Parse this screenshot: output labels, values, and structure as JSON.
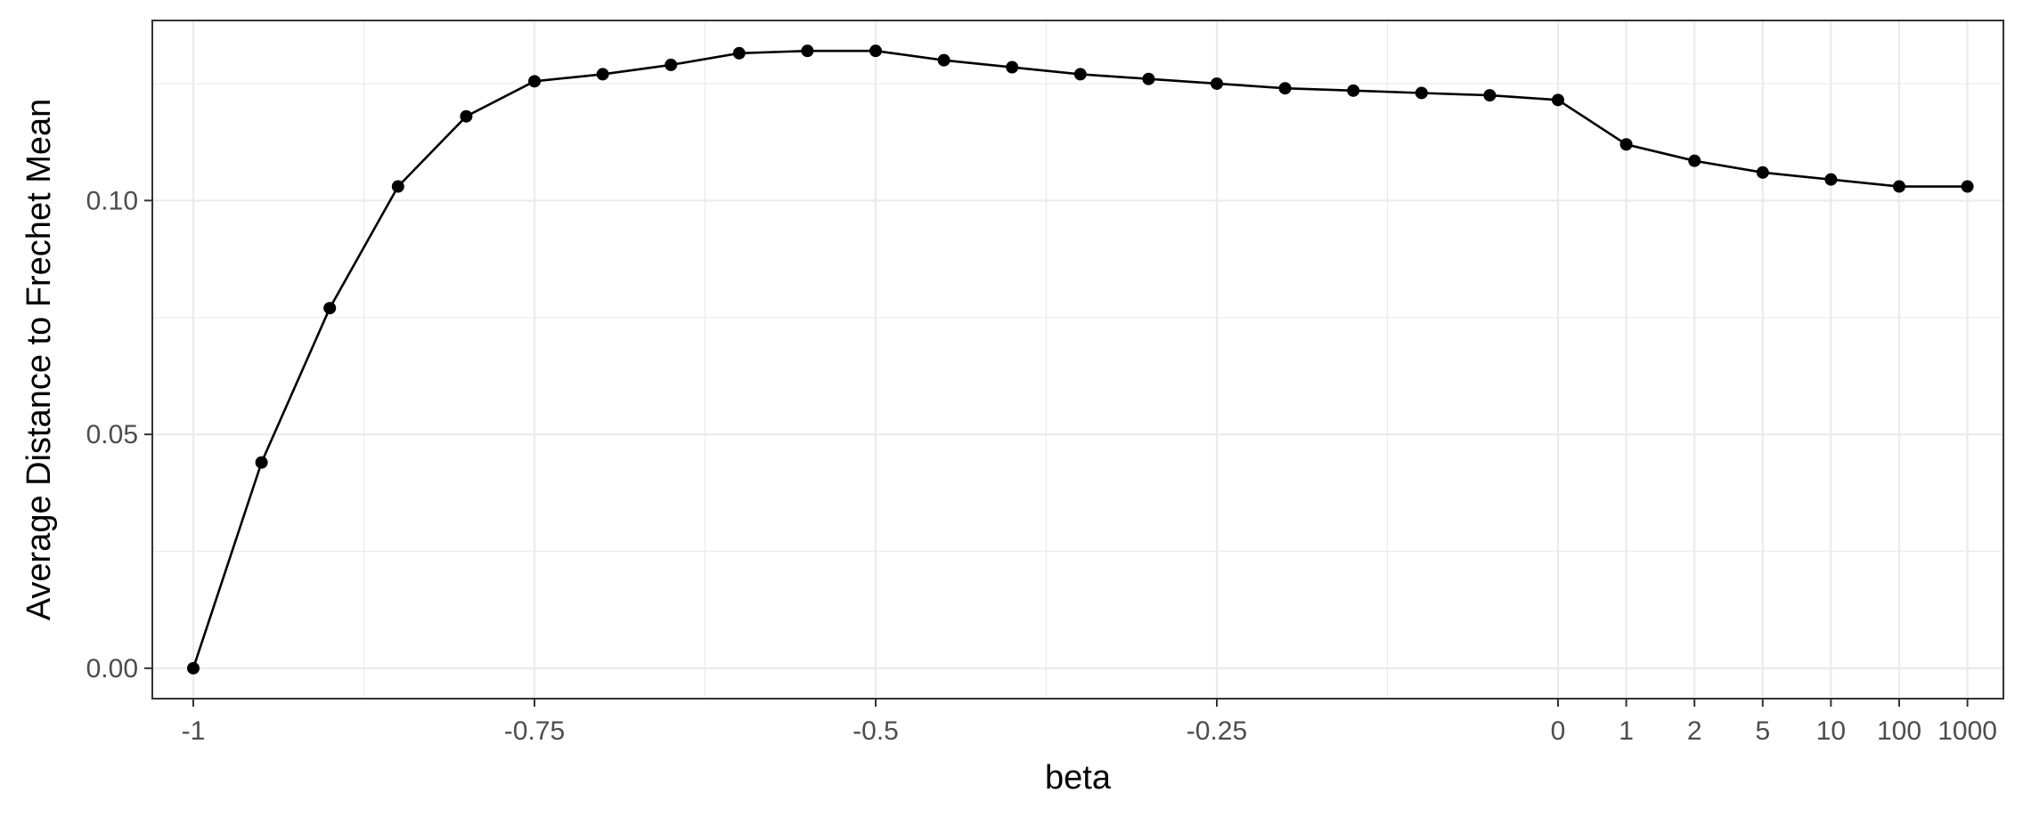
{
  "chart_data": {
    "type": "line",
    "title": "",
    "xlabel": "beta",
    "ylabel": "Average Distance to Frechet Mean",
    "x": [
      "-1",
      "-0.95",
      "-0.9",
      "-0.85",
      "-0.8",
      "-0.75",
      "-0.7",
      "-0.65",
      "-0.6",
      "-0.55",
      "-0.5",
      "-0.45",
      "-0.4",
      "-0.35",
      "-0.3",
      "-0.25",
      "-0.2",
      "-0.15",
      "-0.1",
      "-0.05",
      "0",
      "1",
      "2",
      "5",
      "10",
      "100",
      "1000"
    ],
    "series": [
      {
        "values": [
          0.0,
          0.044,
          0.077,
          0.103,
          0.118,
          0.1255,
          0.127,
          0.129,
          0.1315,
          0.132,
          0.132,
          0.13,
          0.1285,
          0.127,
          0.126,
          0.125,
          0.124,
          0.1235,
          0.123,
          0.1225,
          0.1215,
          0.112,
          0.1085,
          0.106,
          0.1045,
          0.103,
          0.103
        ]
      }
    ],
    "x_ticks": [
      "-1",
      "-0.75",
      "-0.5",
      "-0.25",
      "0",
      "1",
      "2",
      "5",
      "10",
      "100",
      "1000"
    ],
    "y_ticks": [
      "0.00",
      "0.05",
      "0.10"
    ],
    "y_tick_values": [
      0.0,
      0.05,
      0.1
    ],
    "ylim": [
      -0.0065,
      0.1385
    ],
    "grid": true,
    "legend": "none",
    "colors": {
      "line": "#000000",
      "point": "#000000",
      "grid": "#ebebeb",
      "panel_border": "#333333",
      "tick_text": "#4d4d4d"
    }
  }
}
